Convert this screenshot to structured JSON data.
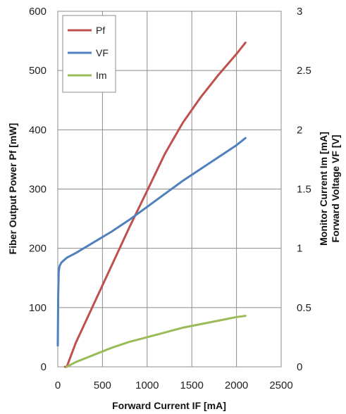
{
  "chart_data": {
    "type": "line",
    "xlabel": "Forward Current IF [mA]",
    "ylabel_left": "Fiber Output Power Pf [mW]",
    "ylabel_right_lines": [
      "Monitor Current Im [mA]",
      "Forward Voltage VF [V]"
    ],
    "xlim": [
      0,
      2500
    ],
    "ylim_left": [
      0,
      600
    ],
    "ylim_right": [
      0,
      3
    ],
    "x_ticks": [
      0,
      500,
      1000,
      1500,
      2000,
      2500
    ],
    "y_left_ticks": [
      0,
      100,
      200,
      300,
      400,
      500,
      600
    ],
    "y_right_ticks": [
      "0",
      "0.5",
      "1",
      "1.5",
      "2",
      "2.5",
      "3"
    ],
    "grid": true,
    "legend_position": "top-left",
    "series": [
      {
        "name": "Pf",
        "axis": "left",
        "color": "#c0504d",
        "x": [
          80,
          100,
          200,
          400,
          600,
          800,
          1000,
          1200,
          1400,
          1600,
          1800,
          2000,
          2100
        ],
        "y": [
          0,
          0,
          40,
          105,
          170,
          235,
          297,
          360,
          412,
          455,
          493,
          528,
          547
        ]
      },
      {
        "name": "VF",
        "axis": "right",
        "color": "#4f81bd",
        "x": [
          0,
          5,
          10,
          20,
          40,
          70,
          100,
          200,
          400,
          600,
          800,
          1000,
          1200,
          1400,
          1600,
          1800,
          2000,
          2100
        ],
        "y": [
          0.18,
          0.6,
          0.8,
          0.85,
          0.88,
          0.9,
          0.92,
          0.96,
          1.05,
          1.14,
          1.24,
          1.35,
          1.46,
          1.57,
          1.67,
          1.77,
          1.87,
          1.93
        ]
      },
      {
        "name": "Im",
        "axis": "right",
        "color": "#9bbb59",
        "x": [
          100,
          200,
          400,
          600,
          800,
          1000,
          1200,
          1400,
          1600,
          1800,
          2000,
          2100
        ],
        "y": [
          0.0,
          0.04,
          0.1,
          0.16,
          0.21,
          0.25,
          0.29,
          0.33,
          0.36,
          0.39,
          0.42,
          0.43
        ]
      }
    ]
  }
}
